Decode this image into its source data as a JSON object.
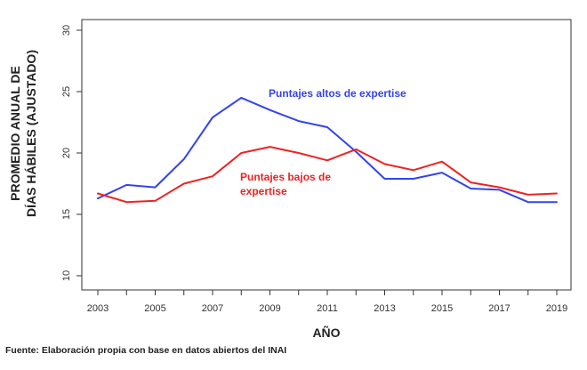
{
  "chart_data": {
    "type": "line",
    "title": "",
    "xlabel": "AÑO",
    "ylabel_lines": [
      "PROMEDIO ANUAL DE",
      "DÍAS HÁBILES (AJUSTADO)"
    ],
    "x": [
      2003,
      2004,
      2005,
      2006,
      2007,
      2008,
      2009,
      2010,
      2011,
      2012,
      2013,
      2014,
      2015,
      2016,
      2017,
      2018,
      2019
    ],
    "xticks": [
      "2003",
      "2005",
      "2007",
      "2009",
      "2011",
      "2013",
      "2015",
      "2017",
      "2019"
    ],
    "yticks": [
      "10",
      "15",
      "20",
      "25",
      "30"
    ],
    "ylim": [
      10,
      30
    ],
    "xlim": [
      2003,
      2019
    ],
    "grid": false,
    "legend": "none",
    "series": [
      {
        "name": "Puntajes altos de expertise",
        "color": "#3344ee",
        "values": [
          16.3,
          17.4,
          17.2,
          19.5,
          22.9,
          24.5,
          23.5,
          22.6,
          22.1,
          20.1,
          17.9,
          17.9,
          18.4,
          17.1,
          17.0,
          16.0,
          16.0
        ]
      },
      {
        "name": "Puntajes bajos de expertise",
        "color": "#ee2222",
        "values": [
          16.7,
          16.0,
          16.1,
          17.5,
          18.1,
          20.0,
          20.5,
          20.0,
          19.4,
          20.3,
          19.1,
          18.6,
          19.3,
          17.6,
          17.2,
          16.6,
          16.7
        ]
      }
    ],
    "annotations": [
      {
        "lines": [
          "Puntajes  altos de expertise"
        ],
        "color": "#3344ee"
      },
      {
        "lines": [
          "Puntajes  bajos  de",
          "expertise"
        ],
        "color": "#ee2222"
      }
    ]
  },
  "source_note": "Fuente: Elaboración propia con base en datos abiertos del INAI"
}
